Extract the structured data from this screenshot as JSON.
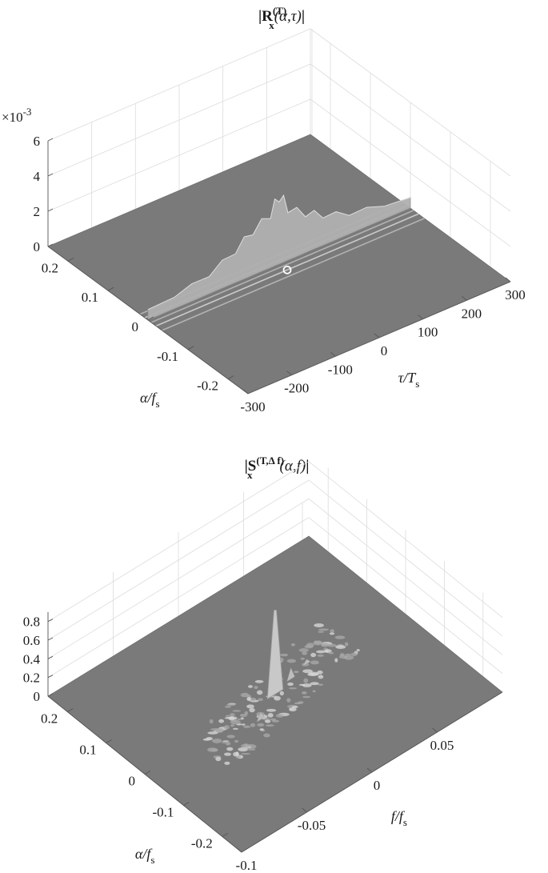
{
  "chart_data": [
    {
      "type": "surface",
      "title": {
        "prefix": "|R",
        "sub": "x",
        "sup": "(T)",
        "args": "(α,τ)",
        "suffix": "|"
      },
      "xlabel": {
        "main": "τ/T",
        "sub": "s"
      },
      "ylabel": {
        "main": "α/f",
        "sub": "s"
      },
      "zlabel": "",
      "x_ticks": [
        "-300",
        "-200",
        "-100",
        "0",
        "100",
        "200",
        "300"
      ],
      "x_tick_values": [
        -300,
        -200,
        -100,
        0,
        100,
        200,
        300
      ],
      "y_ticks": [
        "-0.2",
        "-0.1",
        "0",
        "0.1",
        "0.2"
      ],
      "y_tick_values": [
        -0.2,
        -0.1,
        0,
        0.1,
        0.2
      ],
      "z_ticks": [
        "0",
        "2",
        "4",
        "6"
      ],
      "z_tick_values": [
        0,
        2,
        4,
        6
      ],
      "z_exponent": {
        "base": "×10",
        "exp": "-3"
      },
      "xlim": [
        -300,
        300
      ],
      "ylim": [
        -0.25,
        0.25
      ],
      "zlim": [
        0,
        6
      ],
      "grid": true,
      "surface_color": "#7a7a7a",
      "ridge": {
        "alpha": 0,
        "tau": [
          -300,
          -240,
          -200,
          -160,
          -130,
          -100,
          -80,
          -60,
          -40,
          -20,
          -10,
          0,
          10,
          20,
          40,
          60,
          80,
          100,
          130,
          160,
          200,
          240,
          300
        ],
        "values": [
          0.6,
          0.8,
          1.0,
          1.2,
          1.6,
          2.0,
          2.4,
          2.8,
          3.0,
          3.4,
          3.8,
          4.3,
          3.8,
          3.3,
          2.8,
          2.5,
          2.2,
          1.9,
          1.6,
          1.3,
          1.1,
          0.9,
          0.6
        ]
      },
      "marker": {
        "tau": 0,
        "alpha": -0.02,
        "value": 0
      }
    },
    {
      "type": "surface",
      "title": {
        "prefix": "|S",
        "sub": "x",
        "sup": "(T,Δ f)",
        "args": "(α,f)",
        "suffix": "|"
      },
      "xlabel": {
        "main": "f/f",
        "sub": "s"
      },
      "ylabel": {
        "main": "α/f",
        "sub": "s"
      },
      "zlabel": "",
      "x_ticks": [
        "-0.1",
        "-0.05",
        "0",
        "0.05"
      ],
      "x_tick_values": [
        -0.1,
        -0.05,
        0,
        0.05
      ],
      "y_ticks": [
        "-0.2",
        "-0.1",
        "0",
        "0.1",
        "0.2"
      ],
      "y_tick_values": [
        -0.2,
        -0.1,
        0,
        0.1,
        0.2
      ],
      "z_ticks": [
        "0",
        "0.2",
        "0.4",
        "0.6",
        "0.8"
      ],
      "z_tick_values": [
        0,
        0.2,
        0.4,
        0.6,
        0.8
      ],
      "xlim": [
        -0.1,
        0.1
      ],
      "ylim": [
        -0.25,
        0.25
      ],
      "zlim": [
        0,
        0.9
      ],
      "grid": true,
      "surface_color": "#7a7a7a",
      "peak": {
        "f": 0,
        "alpha": 0,
        "value": 0.9
      }
    }
  ]
}
